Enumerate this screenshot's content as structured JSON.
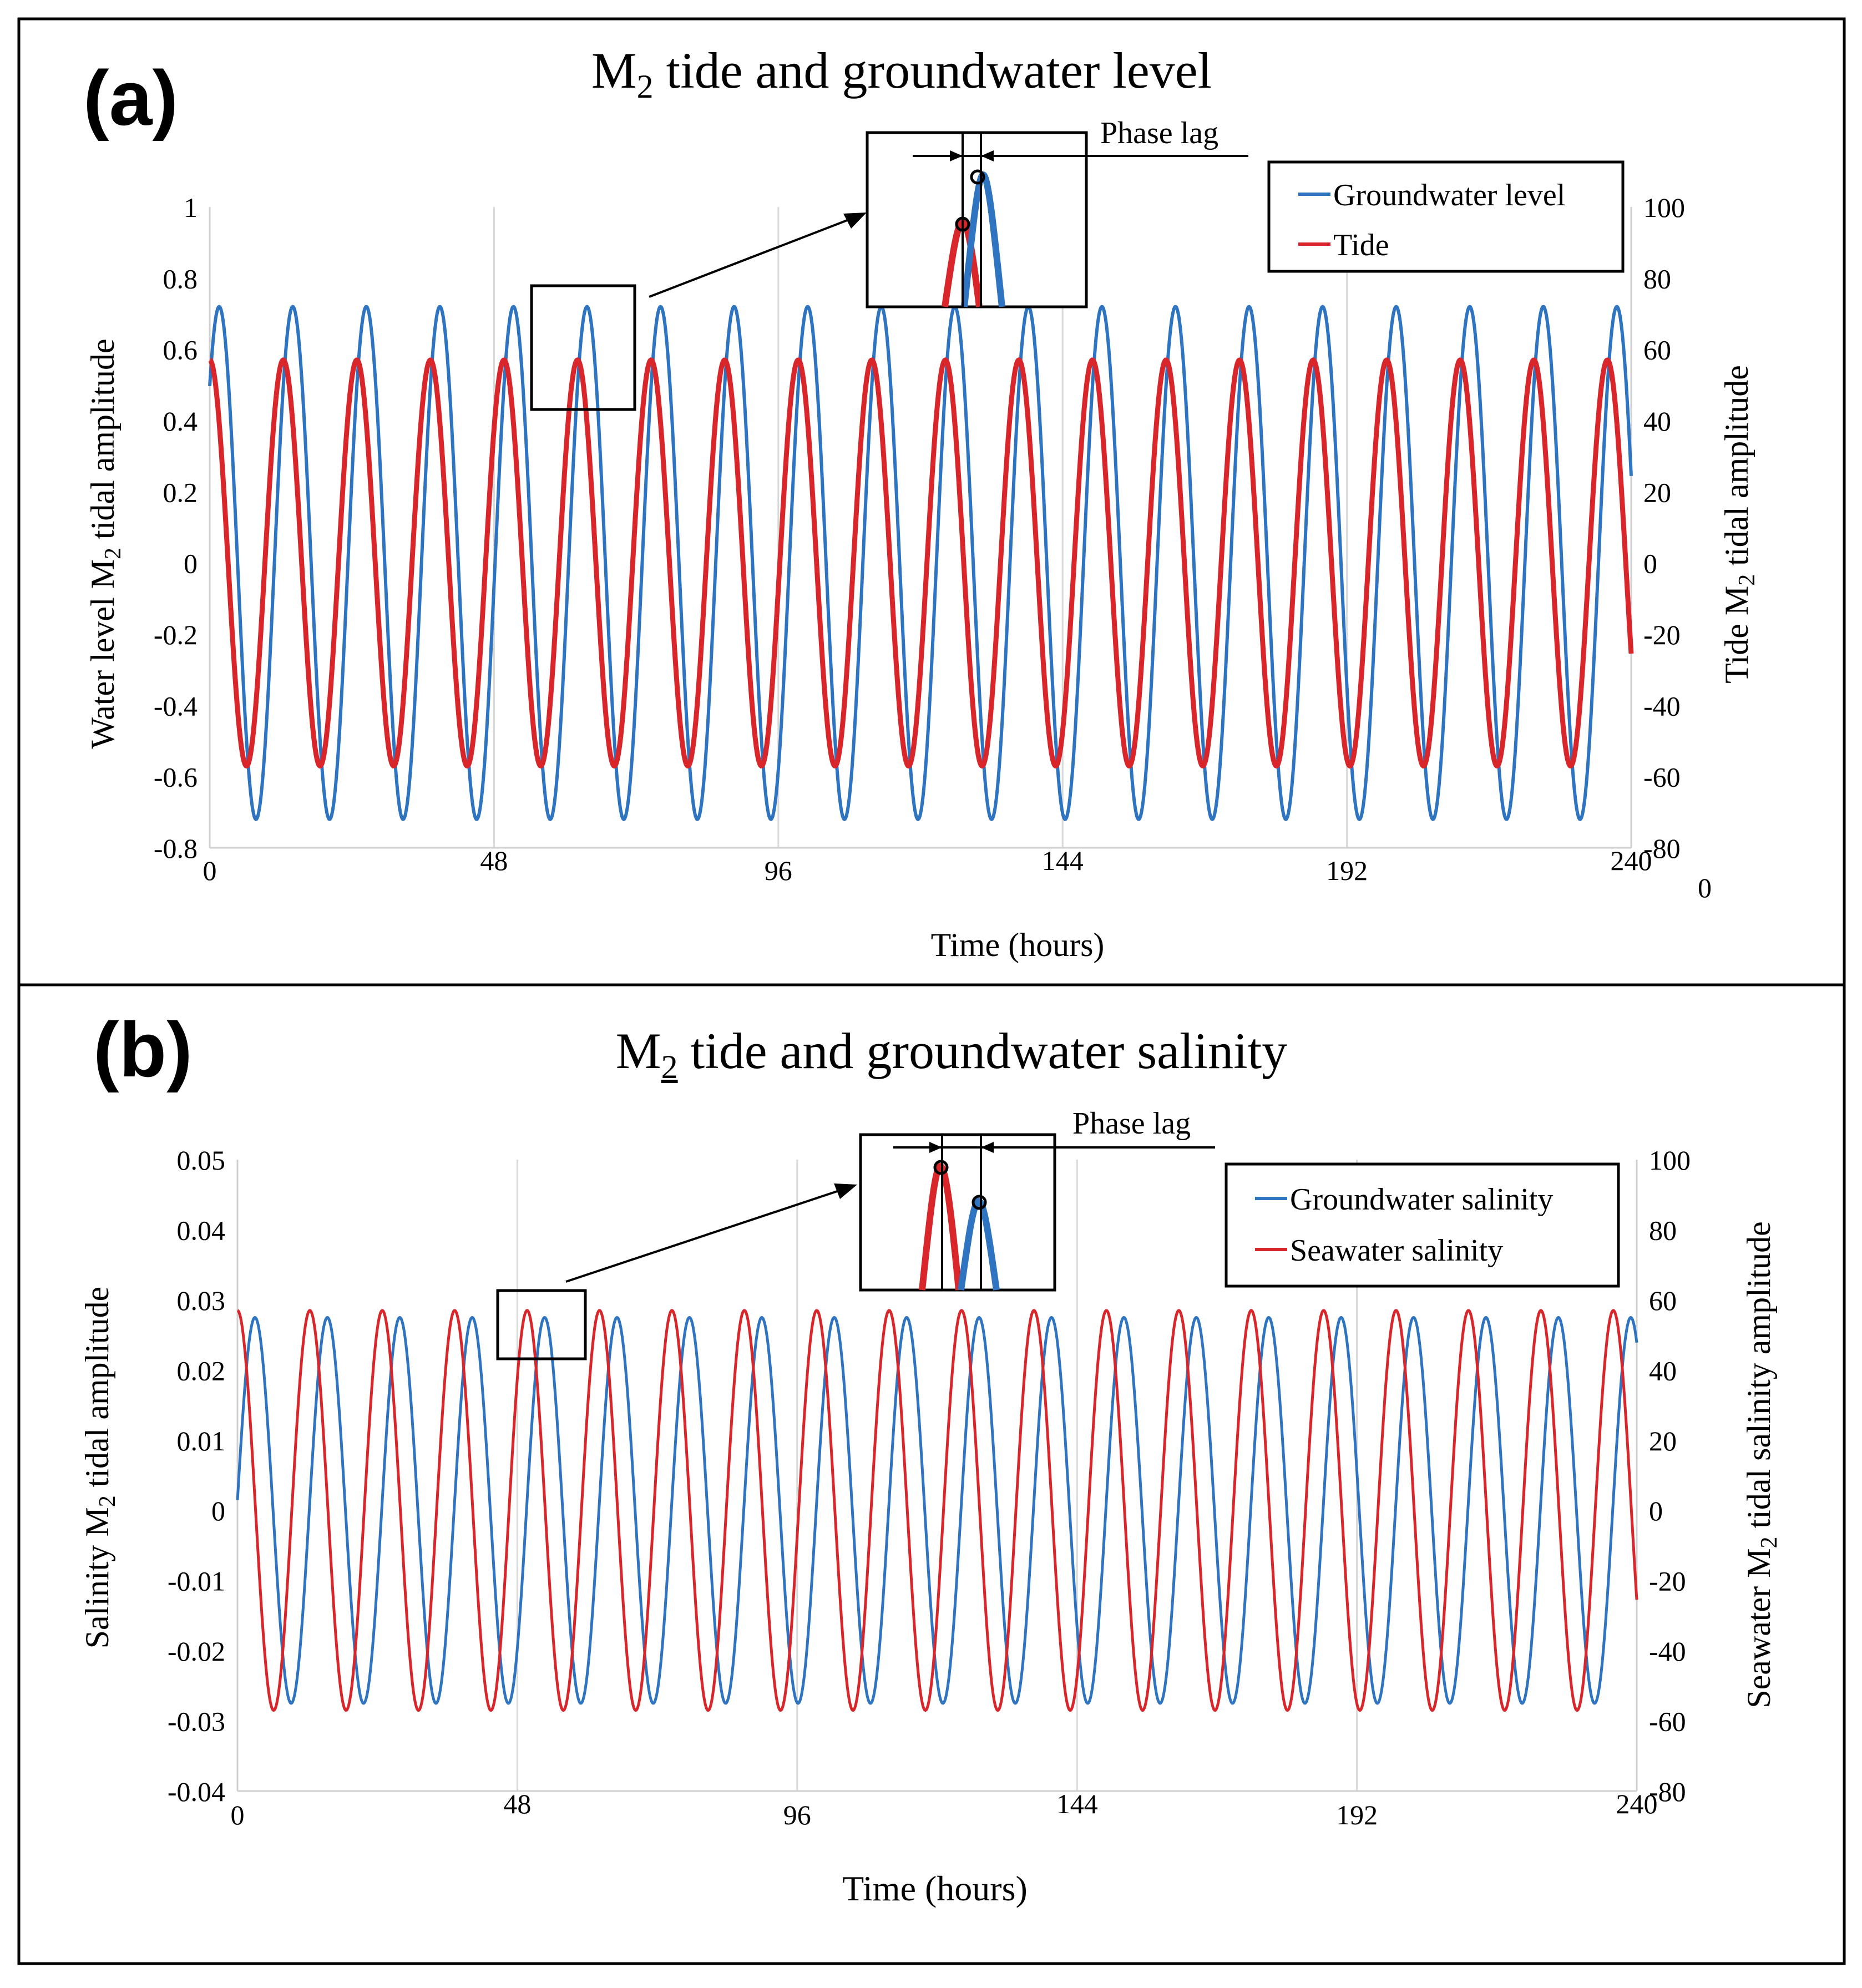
{
  "chart_data": [
    {
      "panel_label": "(a)",
      "type": "line",
      "title_main": "M",
      "title_sub": "2",
      "title_rest": " tide and groundwater level",
      "xlabel": "Time (hours)",
      "ylabel_left_pre": "Water level M",
      "ylabel_left_sub": "2",
      "ylabel_left_post": " tidal amplitude",
      "ylabel_right_pre": "Tide M",
      "ylabel_right_sub": "2",
      "ylabel_right_post": " tidal amplitude",
      "xlim": [
        0,
        240
      ],
      "ylim_left": [
        -0.8,
        1
      ],
      "ylim_right": [
        -80,
        100
      ],
      "xticks": [
        "0",
        "48",
        "96",
        "144",
        "192",
        "240"
      ],
      "yticks_left": [
        "-0.8",
        "-0.6",
        "-0.4",
        "-0.2",
        "0",
        "0.2",
        "0.4",
        "0.6",
        "0.8",
        "1"
      ],
      "yticks_right": [
        "-80",
        "-60",
        "-40",
        "-20",
        "0",
        "20",
        "40",
        "60",
        "80",
        "100"
      ],
      "extra_right_tick": "0",
      "grid": "vertical",
      "legend_position": "top-right",
      "inset_label": "Phase lag",
      "series": [
        {
          "name": "Groundwater level",
          "axis": "left",
          "color": "#2f74c0",
          "amplitude": 0.72,
          "period_hours": 12.42,
          "phase_hours": 1.6
        },
        {
          "name": "Tide",
          "axis": "right",
          "color": "#d9262a",
          "amplitude": 57,
          "period_hours": 12.42,
          "phase_hours": 0
        }
      ]
    },
    {
      "panel_label": "(b)",
      "type": "line",
      "title_main": "M",
      "title_sub": "2",
      "title_rest": "  tide and groundwater salinity",
      "xlabel": "Time (hours)",
      "ylabel_left_pre": "Salinity M",
      "ylabel_left_sub": "2",
      "ylabel_left_post": " tidal amplitude",
      "ylabel_right_pre": "Seawater M",
      "ylabel_right_sub": "2",
      "ylabel_right_post": " tidal salinity amplitude",
      "xlim": [
        0,
        240
      ],
      "ylim_left": [
        -0.04,
        0.05
      ],
      "ylim_right": [
        -80,
        100
      ],
      "xticks": [
        "0",
        "48",
        "96",
        "144",
        "192",
        "240"
      ],
      "yticks_left": [
        "-0.04",
        "-0.03",
        "-0.02",
        "-0.01",
        "0",
        "0.01",
        "0.02",
        "0.03",
        "0.04",
        "0.05"
      ],
      "yticks_right": [
        "-80",
        "-60",
        "-40",
        "-20",
        "0",
        "20",
        "40",
        "60",
        "80",
        "100"
      ],
      "grid": "vertical",
      "legend_position": "top-right",
      "inset_label": "Phase lag",
      "series": [
        {
          "name": "Groundwater salinity",
          "axis": "left",
          "color": "#2f74c0",
          "amplitude": 0.0275,
          "period_hours": 12.42,
          "phase_hours": 3.0
        },
        {
          "name": "Seawater salinity",
          "axis": "right",
          "color": "#d9262a",
          "amplitude": 57,
          "period_hours": 12.42,
          "phase_hours": 0
        }
      ]
    }
  ]
}
